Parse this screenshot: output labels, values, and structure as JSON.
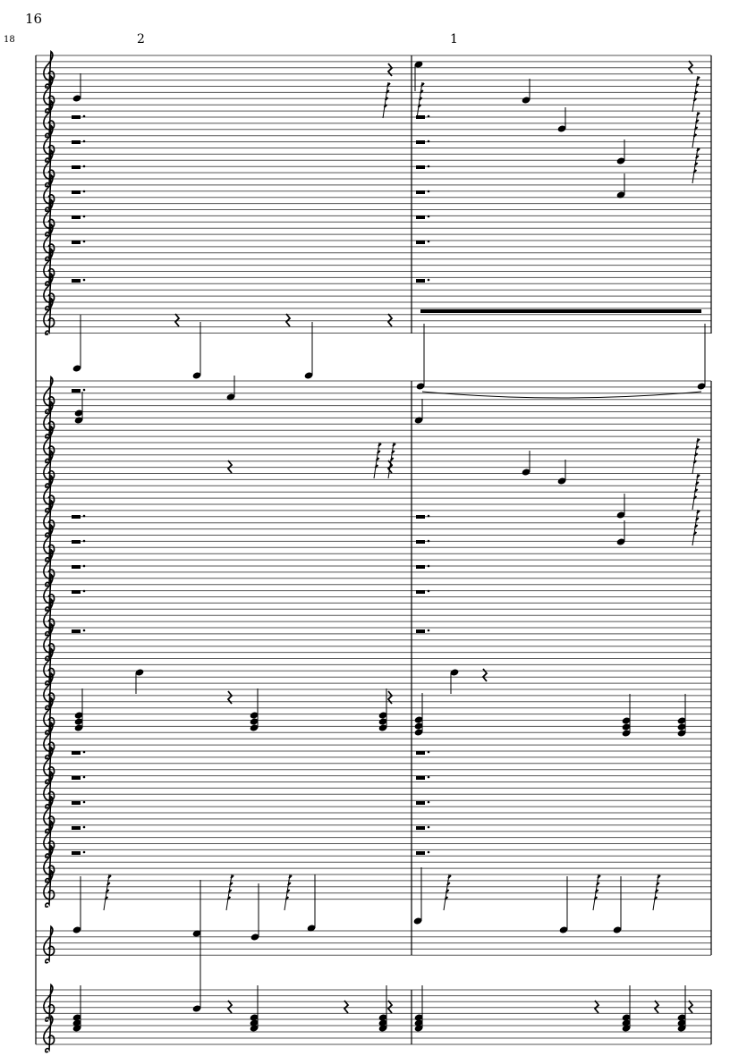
{
  "score": {
    "page_number": "16",
    "system_number": "18",
    "measure_labels": [
      "2",
      "1"
    ],
    "clef": "treble-clef-icon",
    "ink_color": "#000000",
    "staff_line_color": "#555555"
  }
}
